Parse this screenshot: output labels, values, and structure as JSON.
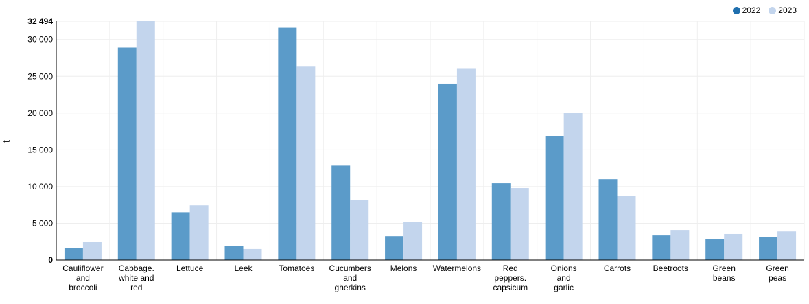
{
  "chart_data": {
    "type": "bar",
    "title": "",
    "xlabel": "",
    "ylabel": "t",
    "ylim": [
      0,
      32494
    ],
    "ymax_label": "32 494",
    "yticks": [
      0,
      5000,
      10000,
      15000,
      20000,
      25000,
      30000
    ],
    "ytick_labels": [
      "0",
      "5 000",
      "10 000",
      "15 000",
      "20 000",
      "25 000",
      "30 000"
    ],
    "grid": true,
    "legend_position": "top-right",
    "categories": [
      [
        "Cauliflower",
        "and",
        "broccoli"
      ],
      [
        "Cabbage.",
        "white and",
        "red"
      ],
      [
        "Lettuce"
      ],
      [
        "Leek"
      ],
      [
        "Tomatoes"
      ],
      [
        "Cucumbers",
        "and",
        "gherkins"
      ],
      [
        "Melons"
      ],
      [
        "Watermelons"
      ],
      [
        "Red",
        "peppers.",
        "capsicum"
      ],
      [
        "Onions",
        "and",
        "garlic"
      ],
      [
        "Carrots"
      ],
      [
        "Beetroots"
      ],
      [
        "Green",
        "beans"
      ],
      [
        "Green",
        "peas"
      ]
    ],
    "series": [
      {
        "name": "2022",
        "color": "#5b9bc9",
        "values": [
          1600,
          28900,
          6500,
          1950,
          31600,
          12850,
          3250,
          24000,
          10450,
          16900,
          11000,
          3350,
          2800,
          3150
        ]
      },
      {
        "name": "2023",
        "color": "#c3d5ed",
        "values": [
          2450,
          32494,
          7450,
          1500,
          26400,
          8200,
          5150,
          26100,
          9800,
          20050,
          8750,
          4100,
          3550,
          3900
        ]
      }
    ]
  }
}
